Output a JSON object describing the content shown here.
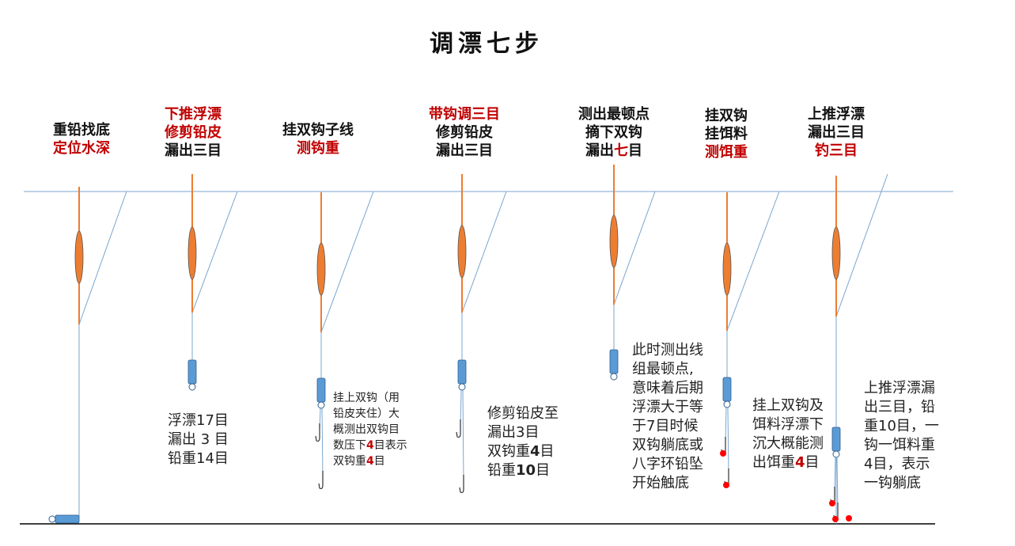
{
  "title": "调漂七步",
  "colors": {
    "water_line": "#7aa6cf",
    "float_body": "#ed7d31",
    "sinker": "#5b9bd5",
    "highlight": "#c00000",
    "bait": "#ff0000"
  },
  "steps": [
    {
      "heading": [
        [
          [
            "重铅找底",
            ""
          ]
        ],
        [
          [
            "定位水深",
            "r"
          ]
        ]
      ],
      "note": []
    },
    {
      "heading": [
        [
          [
            "下推浮漂",
            "r"
          ]
        ],
        [
          [
            "修剪铅皮",
            "r"
          ]
        ],
        [
          [
            "漏出三目",
            ""
          ]
        ]
      ],
      "note": [
        [
          [
            "浮漂17目",
            ""
          ]
        ],
        [
          [
            "漏出 3 目",
            ""
          ]
        ],
        [
          [
            "铅重14目",
            ""
          ]
        ]
      ]
    },
    {
      "heading": [
        [
          [
            "挂双钩子线",
            ""
          ]
        ],
        [
          [
            "测钩重",
            "r"
          ]
        ]
      ],
      "note": [
        [
          [
            "挂上双钩（用",
            ""
          ]
        ],
        [
          [
            "铅皮夹住）大",
            ""
          ]
        ],
        [
          [
            "概测出双钩目",
            ""
          ]
        ],
        [
          [
            "数压下",
            ""
          ],
          [
            "4",
            "b"
          ],
          [
            "目表示",
            ""
          ]
        ],
        [
          [
            "双钩重",
            ""
          ],
          [
            "4",
            "b"
          ],
          [
            "目",
            ""
          ]
        ]
      ]
    },
    {
      "heading": [
        [
          [
            "带钩调三目",
            "r"
          ]
        ],
        [
          [
            "修剪铅皮",
            ""
          ]
        ],
        [
          [
            "漏出三目",
            ""
          ]
        ]
      ],
      "note": [
        [
          [
            "修剪铅皮至",
            ""
          ]
        ],
        [
          [
            "漏出3目",
            ""
          ]
        ],
        [
          [
            "双钩重",
            ""
          ],
          [
            "4",
            "k"
          ],
          [
            "目",
            ""
          ]
        ],
        [
          [
            "铅重",
            ""
          ],
          [
            "10",
            "k"
          ],
          [
            "目",
            ""
          ]
        ]
      ]
    },
    {
      "heading": [
        [
          [
            "测出最顿点",
            ""
          ]
        ],
        [
          [
            "摘下双钩",
            ""
          ]
        ],
        [
          [
            "漏出",
            ""
          ],
          [
            "七",
            "r"
          ],
          [
            "目",
            ""
          ]
        ]
      ],
      "note": [
        [
          [
            "此时测出线",
            ""
          ]
        ],
        [
          [
            "组最顿点,",
            ""
          ]
        ],
        [
          [
            "意味着后期",
            ""
          ]
        ],
        [
          [
            "浮漂大于等",
            ""
          ]
        ],
        [
          [
            "于7目时候",
            ""
          ]
        ],
        [
          [
            "双钩躺底或",
            ""
          ]
        ],
        [
          [
            "八字环铅坠",
            ""
          ]
        ],
        [
          [
            "开始触底",
            ""
          ]
        ]
      ]
    },
    {
      "heading": [
        [
          [
            "挂双钩",
            ""
          ]
        ],
        [
          [
            "挂饵料",
            ""
          ]
        ],
        [
          [
            "测饵重",
            "r"
          ]
        ]
      ],
      "note": [
        [
          [
            "挂上双钩及",
            ""
          ]
        ],
        [
          [
            "饵料浮漂下",
            ""
          ]
        ],
        [
          [
            "沉大概能测",
            ""
          ]
        ],
        [
          [
            "出饵重",
            ""
          ],
          [
            "4",
            "b"
          ],
          [
            "目",
            ""
          ]
        ]
      ]
    },
    {
      "heading": [
        [
          [
            "上推浮漂",
            ""
          ]
        ],
        [
          [
            "漏出三目",
            ""
          ]
        ],
        [
          [
            "钓三目",
            "r"
          ]
        ]
      ],
      "note": [
        [
          [
            "上推浮漂漏",
            ""
          ]
        ],
        [
          [
            "出三目，铅",
            ""
          ]
        ],
        [
          [
            "重10目，一",
            ""
          ]
        ],
        [
          [
            "钩一饵料重",
            ""
          ]
        ],
        [
          [
            "4目，表示",
            ""
          ]
        ],
        [
          [
            "一钩躺底",
            ""
          ]
        ]
      ]
    }
  ]
}
